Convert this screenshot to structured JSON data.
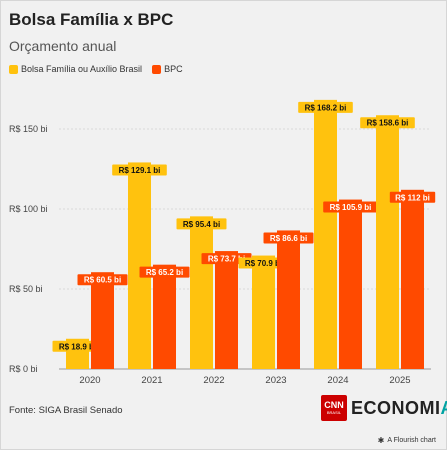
{
  "header": {
    "title": "Bolsa Família x BPC",
    "subtitle": "Orçamento anual"
  },
  "legend": [
    {
      "label": "Bolsa Família ou Auxílio Brasil",
      "color": "#ffc20e"
    },
    {
      "label": "BPC",
      "color": "#ff4a00"
    }
  ],
  "chart_data": {
    "type": "bar",
    "categories": [
      "2020",
      "2021",
      "2022",
      "2023",
      "2024",
      "2025"
    ],
    "series": [
      {
        "name": "Bolsa Família ou Auxílio Brasil",
        "color": "#ffc20e",
        "values": [
          18.9,
          129.1,
          95.4,
          70.9,
          168.2,
          158.6
        ],
        "labels": [
          "R$ 18.9 bi",
          "R$ 129.1 bi",
          "R$ 95.4 bi",
          "R$ 70.9 bi",
          "R$ 168.2 bi",
          "R$ 158.6 bi"
        ]
      },
      {
        "name": "BPC",
        "color": "#ff4a00",
        "values": [
          60.5,
          65.2,
          73.7,
          86.6,
          105.9,
          112
        ],
        "labels": [
          "R$ 60.5 bi",
          "R$ 65.2 bi",
          "R$ 73.7 bi",
          "R$ 86.6 bi",
          "R$ 105.9 bi",
          "R$ 112 bi"
        ]
      }
    ],
    "ylim": [
      0,
      180
    ],
    "yticks": [
      0,
      50,
      100,
      150
    ],
    "ytick_labels": [
      "R$ 0 bi",
      "R$ 50 bi",
      "R$ 100 bi",
      "R$ 150 bi"
    ],
    "grid": true,
    "legend_position": "top-left"
  },
  "footer": {
    "source": "Fonte: SIGA Brasil Senado",
    "logo_badge": "CNN",
    "logo_badge_sub": "BRASIL",
    "logo_text_main": "ECONOMI",
    "logo_text_accent": "A",
    "credit": "A Flourish chart",
    "credit_icon": "flourish-icon"
  }
}
